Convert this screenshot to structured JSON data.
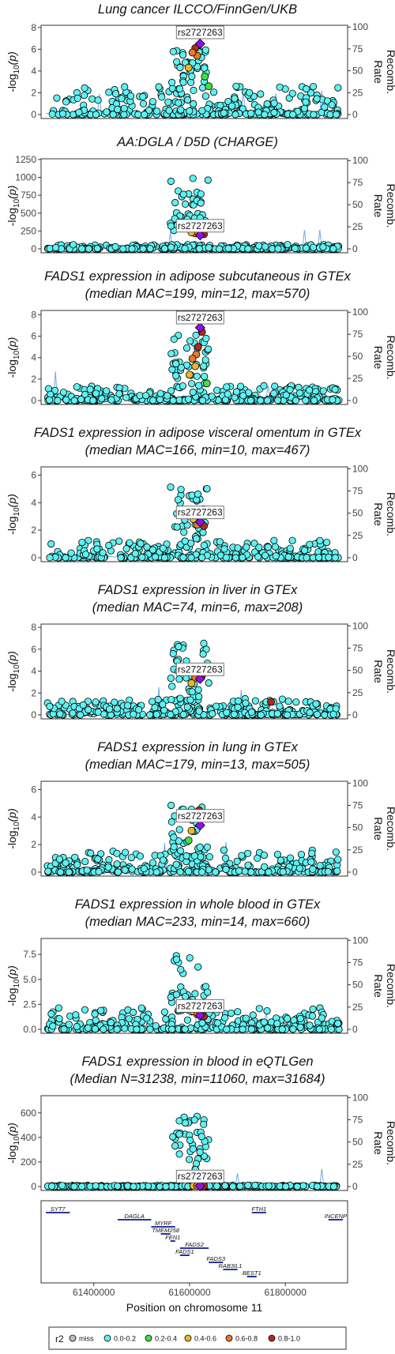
{
  "chart_data": [
    {
      "type": "scatter",
      "title": "Lung cancer ILCCO/FinnGen/UKB",
      "subtitle": "",
      "ylabel": "-log10(p)",
      "y2label": "Recomb. Rate",
      "yticks": [
        0,
        2,
        4,
        6,
        8
      ],
      "ylim": [
        0,
        8.2
      ],
      "y2ticks": [
        0,
        25,
        50,
        75,
        100
      ],
      "y2lim": [
        0,
        102
      ],
      "lead_snp": "rs2727263",
      "lead": {
        "x": 61622000,
        "y": 6.5
      },
      "peak": [
        6.3,
        5.9
      ],
      "background": 2.6,
      "highlights": [
        {
          "x": 61612000,
          "y": 6.1,
          "r2": "0.8-1.0"
        },
        {
          "x": 61616000,
          "y": 5.4,
          "r2": "0.6-0.8"
        },
        {
          "x": 61606000,
          "y": 5.7,
          "r2": "0.6-0.8"
        },
        {
          "x": 61598000,
          "y": 4.3,
          "r2": "0.4-0.6"
        },
        {
          "x": 61632000,
          "y": 3.5,
          "r2": "0.2-0.4"
        },
        {
          "x": 61640000,
          "y": 2.6,
          "r2": "0.2-0.4"
        }
      ]
    },
    {
      "type": "scatter",
      "title": "AA:DGLA / D5D (CHARGE)",
      "subtitle": "",
      "ylabel": "-log10(p)",
      "y2label": "Recomb. Rate",
      "yticks": [
        0,
        250,
        500,
        750,
        1000,
        1250
      ],
      "ylim": [
        0,
        1260
      ],
      "y2ticks": [
        0,
        25,
        50,
        75,
        100
      ],
      "y2lim": [
        0,
        102
      ],
      "lead_snp": "rs2727263",
      "lead": {
        "x": 61622000,
        "y": 190
      },
      "peak": [
        990,
        790
      ],
      "background": 60,
      "highlights": [
        {
          "x": 61612000,
          "y": 215,
          "r2": "0.6-0.8"
        },
        {
          "x": 61604000,
          "y": 230,
          "r2": "0.4-0.6"
        },
        {
          "x": 61630000,
          "y": 205,
          "r2": "0.8-1.0"
        }
      ]
    },
    {
      "type": "scatter",
      "title": "FADS1 expression in adipose subcutaneous in GTEx",
      "subtitle": "(median MAC=199, min=12, max=570)",
      "ylabel": "-log10(p)",
      "y2label": "Recomb. Rate",
      "yticks": [
        0,
        2,
        4,
        6,
        8
      ],
      "ylim": [
        0,
        8.4
      ],
      "y2ticks": [
        0,
        25,
        50,
        75,
        100
      ],
      "y2lim": [
        0,
        102
      ],
      "lead_snp": "rs2727263",
      "lead": {
        "x": 61622000,
        "y": 6.8
      },
      "peak": [
        6.1,
        4.0
      ],
      "background": 1.4,
      "highlights": [
        {
          "x": 61626000,
          "y": 6.4,
          "r2": "0.8-1.0"
        },
        {
          "x": 61618000,
          "y": 5.0,
          "r2": "0.8-1.0"
        },
        {
          "x": 61614000,
          "y": 4.3,
          "r2": "0.6-0.8"
        },
        {
          "x": 61606000,
          "y": 3.9,
          "r2": "0.6-0.8"
        },
        {
          "x": 61600000,
          "y": 2.4,
          "r2": "0.4-0.6"
        },
        {
          "x": 61612000,
          "y": 3.2,
          "r2": "0.4-0.6"
        },
        {
          "x": 61636000,
          "y": 1.6,
          "r2": "0.2-0.4"
        }
      ]
    },
    {
      "type": "scatter",
      "title": "FADS1 expression in adipose visceral omentum in GTEx",
      "subtitle": "(median MAC=166, min=10, max=467)",
      "ylabel": "-log10(p)",
      "y2label": "Recomb. Rate",
      "yticks": [
        0,
        2,
        4,
        6
      ],
      "ylim": [
        0,
        6.6
      ],
      "y2ticks": [
        0,
        25,
        50,
        75,
        100
      ],
      "y2lim": [
        0,
        102
      ],
      "lead_snp": "rs2727263",
      "lead": {
        "x": 61622000,
        "y": 2.6
      },
      "peak": [
        5.5,
        3.7
      ],
      "background": 1.3,
      "highlights": [
        {
          "x": 61608000,
          "y": 2.8,
          "r2": "0.4-0.6"
        },
        {
          "x": 61616000,
          "y": 2.4,
          "r2": "0.6-0.8"
        },
        {
          "x": 61630000,
          "y": 2.3,
          "r2": "0.8-1.0"
        }
      ]
    },
    {
      "type": "scatter",
      "title": "FADS1 expression in liver in GTEx",
      "subtitle": "(median MAC=74, min=6, max=208)",
      "ylabel": "-log10(p)",
      "y2label": "Recomb. Rate",
      "yticks": [
        0,
        2,
        4,
        6,
        8
      ],
      "ylim": [
        0,
        8.3
      ],
      "y2ticks": [
        0,
        25,
        50,
        75,
        100
      ],
      "y2lim": [
        0,
        102
      ],
      "lead_snp": "rs2727263",
      "lead": {
        "x": 61622000,
        "y": 3.3
      },
      "peak": [
        6.6,
        4.3
      ],
      "background": 1.5,
      "highlights": [
        {
          "x": 61626000,
          "y": 3.6,
          "r2": "0.8-1.0"
        },
        {
          "x": 61612000,
          "y": 3.4,
          "r2": "0.6-0.8"
        },
        {
          "x": 61604000,
          "y": 2.9,
          "r2": "0.4-0.6"
        },
        {
          "x": 61770000,
          "y": 1.2,
          "r2": "0.8-1.0"
        }
      ]
    },
    {
      "type": "scatter",
      "title": "FADS1 expression in lung in GTEx",
      "subtitle": "(median MAC=179, min=13, max=505)",
      "ylabel": "-log10(p)",
      "y2label": "Recomb. Rate",
      "yticks": [
        0,
        2,
        4,
        6
      ],
      "ylim": [
        0,
        6.6
      ],
      "y2ticks": [
        0,
        25,
        50,
        75,
        100
      ],
      "y2lim": [
        0,
        102
      ],
      "lead_snp": "rs2727263",
      "lead": {
        "x": 61622000,
        "y": 3.4
      },
      "peak": [
        5.0,
        3.3
      ],
      "background": 1.6,
      "highlights": [
        {
          "x": 61620000,
          "y": 4.5,
          "r2": "0.8-1.0"
        },
        {
          "x": 61612000,
          "y": 4.1,
          "r2": "0.6-0.8"
        },
        {
          "x": 61604000,
          "y": 3.0,
          "r2": "0.4-0.6"
        },
        {
          "x": 61598000,
          "y": 2.3,
          "r2": "0.2-0.4"
        }
      ]
    },
    {
      "type": "scatter",
      "title": "FADS1 expression in whole blood in GTEx",
      "subtitle": "(median MAC=233, min=14, max=660)",
      "ylabel": "-log10(p)",
      "y2label": "Recomb. Rate",
      "yticks": [
        0.0,
        2.5,
        5.0,
        7.5
      ],
      "ylim": [
        0,
        9.1
      ],
      "y2ticks": [
        0,
        25,
        50,
        75,
        100
      ],
      "y2lim": [
        0,
        102
      ],
      "lead_snp": "rs2727263",
      "lead": {
        "x": 61622000,
        "y": 1.4
      },
      "peak": [
        7.7,
        4.6
      ],
      "background": 2.2,
      "highlights": [
        {
          "x": 61608000,
          "y": 1.8,
          "r2": "0.4-0.6"
        },
        {
          "x": 61616000,
          "y": 1.5,
          "r2": "0.6-0.8"
        },
        {
          "x": 61630000,
          "y": 1.3,
          "r2": "0.8-1.0"
        }
      ]
    },
    {
      "type": "scatter",
      "title": "FADS1 expression in blood in eQTLGen",
      "subtitle": "(Median N=31238, min=11060, max=31684)",
      "ylabel": "-log10(p)",
      "y2label": "Recomb. Rate",
      "yticks": [
        0,
        200,
        400,
        600
      ],
      "ylim": [
        0,
        740
      ],
      "y2ticks": [
        0,
        25,
        50,
        75,
        100
      ],
      "y2lim": [
        0,
        102
      ],
      "lead_snp": "rs2727263",
      "lead": {
        "x": 61622000,
        "y": 5
      },
      "peak": [
        600,
        420
      ],
      "background": 10,
      "highlights": [
        {
          "x": 61608000,
          "y": 6,
          "r2": "0.4-0.6"
        },
        {
          "x": 61616000,
          "y": 5,
          "r2": "0.6-0.8"
        },
        {
          "x": 61630000,
          "y": 4,
          "r2": "0.8-1.0"
        }
      ]
    }
  ],
  "gene_track": {
    "xlim": [
      61290000,
      61930000
    ],
    "xticks": [
      61400000,
      61600000,
      61800000
    ],
    "xlabel": "Position on chromosome 11",
    "genes": [
      {
        "name": "SYT7",
        "start": 61300000,
        "end": 61350000,
        "row": 0
      },
      {
        "name": "FTH1",
        "start": 61730000,
        "end": 61760000,
        "row": 0
      },
      {
        "name": "INCENP",
        "start": 61890000,
        "end": 61920000,
        "row": 1
      },
      {
        "name": "DAGLA",
        "start": 61450000,
        "end": 61520000,
        "row": 1
      },
      {
        "name": "MYRF",
        "start": 61520000,
        "end": 61570000,
        "row": 2
      },
      {
        "name": "TMEM258",
        "start": 61540000,
        "end": 61560000,
        "row": 3
      },
      {
        "name": "FEN1",
        "start": 61560000,
        "end": 61570000,
        "row": 4
      },
      {
        "name": "FADS2",
        "start": 61580000,
        "end": 61640000,
        "row": 5
      },
      {
        "name": "FADS1",
        "start": 61580000,
        "end": 61600000,
        "row": 6
      },
      {
        "name": "FADS3",
        "start": 61640000,
        "end": 61670000,
        "row": 7
      },
      {
        "name": "RAB3IL1",
        "start": 61670000,
        "end": 61700000,
        "row": 8
      },
      {
        "name": "BEST1",
        "start": 61720000,
        "end": 61740000,
        "row": 9
      }
    ]
  },
  "legend": {
    "title": "r2",
    "items": [
      {
        "label": "miss",
        "color": "#bebebe"
      },
      {
        "label": "0.0-0.2",
        "color": "#5ff1f1"
      },
      {
        "label": "0.2-0.4",
        "color": "#44dd44"
      },
      {
        "label": "0.4-0.6",
        "color": "#ecb72e"
      },
      {
        "label": "0.6-0.8",
        "color": "#e8782a"
      },
      {
        "label": "0.8-1.0",
        "color": "#b52a1d"
      }
    ]
  },
  "colors": {
    "lead": "#8e11e8",
    "base": "#5ff1f1",
    "recomb": "#6fa8e8",
    "gene": "#0b1a8a"
  }
}
